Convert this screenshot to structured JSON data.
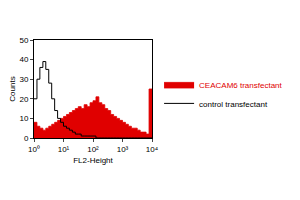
{
  "chart_data": {
    "type": "histogram",
    "x_label": "FL2-Height",
    "y_label": "Counts",
    "bins": [
      1,
      1.26,
      1.58,
      2,
      2.51,
      3.16,
      3.98,
      5.01,
      6.31,
      7.94,
      10,
      12.6,
      15.8,
      20,
      25.1,
      31.6,
      39.8,
      50.1,
      63.1,
      79.4,
      100,
      126,
      158,
      200,
      251,
      316,
      398,
      501,
      631,
      794,
      1000,
      1260,
      1580,
      2000,
      2510,
      3160,
      3980,
      5010,
      6310,
      7940,
      10000
    ],
    "series": [
      {
        "name": "CEACAM6 transfectant",
        "color": "#e00000",
        "type": "area",
        "values": [
          8,
          6,
          5,
          4,
          5,
          6,
          7,
          8,
          9,
          10,
          11,
          12,
          13,
          14,
          15,
          16,
          15,
          17,
          16,
          18,
          19,
          21,
          18,
          17,
          15,
          14,
          12,
          11,
          10,
          9,
          8,
          7,
          6,
          5,
          5,
          4,
          3,
          3,
          2,
          25
        ]
      },
      {
        "name": "control transfectant",
        "color": "#000000",
        "type": "line",
        "values": [
          20,
          30,
          36,
          39,
          35,
          28,
          20,
          14,
          10,
          8,
          6,
          5,
          4,
          3,
          2,
          2,
          1,
          1,
          1,
          1,
          1,
          0,
          0,
          0,
          0,
          0,
          0,
          0,
          0,
          0,
          0,
          0,
          0,
          0,
          0,
          0,
          0,
          0,
          0,
          0
        ]
      }
    ],
    "log": "x",
    "xlim": [
      1,
      10000
    ],
    "xticks": [
      {
        "value": 1,
        "label": "10⁰"
      },
      {
        "value": 10,
        "label": "10¹"
      },
      {
        "value": 100,
        "label": "10²"
      },
      {
        "value": 1000,
        "label": "10³"
      },
      {
        "value": 10000,
        "label": "10⁴"
      }
    ],
    "ylim": [
      0,
      50
    ],
    "yticks": [
      0,
      10,
      20,
      30,
      40,
      50
    ],
    "grid": false,
    "legend": "right"
  }
}
